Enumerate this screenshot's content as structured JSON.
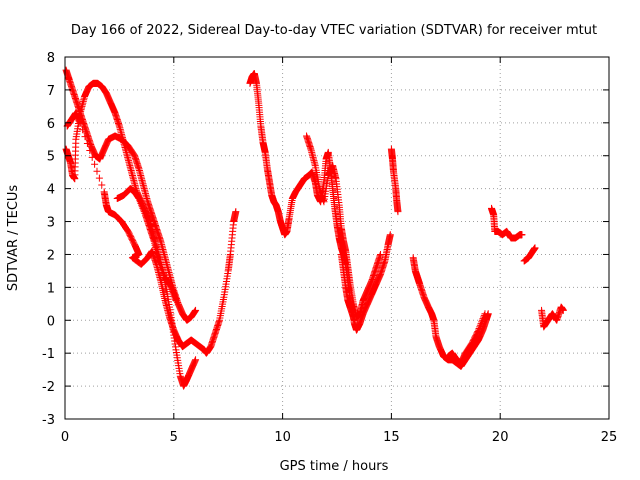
{
  "chart_data": {
    "type": "scatter",
    "title": "Day 166 of 2022, Sidereal Day-to-day VTEC variation (SDTVAR) for receiver mtut",
    "xlabel": "GPS time / hours",
    "ylabel": "SDTVAR / TECUs",
    "xlim": [
      0,
      25
    ],
    "ylim": [
      -3,
      8
    ],
    "xticks": [
      "0",
      "5",
      "10",
      "15",
      "20",
      "25"
    ],
    "yticks": [
      "-3",
      "-2",
      "-1",
      "0",
      "1",
      "2",
      "3",
      "4",
      "5",
      "6",
      "7",
      "8"
    ],
    "grid": true,
    "marker": "+",
    "color": "#ff0000",
    "series": [
      {
        "name": "trace-1",
        "points": [
          [
            0.05,
            7.6
          ],
          [
            0.2,
            7.3
          ],
          [
            0.4,
            6.9
          ],
          [
            0.6,
            6.5
          ],
          [
            0.8,
            6.1
          ],
          [
            1.0,
            5.7
          ],
          [
            1.2,
            5.3
          ],
          [
            1.4,
            5.0
          ],
          [
            1.6,
            4.9
          ],
          [
            1.8,
            5.2
          ],
          [
            2.0,
            5.5
          ],
          [
            2.3,
            5.6
          ],
          [
            2.6,
            5.5
          ],
          [
            2.9,
            5.3
          ],
          [
            3.2,
            5.0
          ],
          [
            3.4,
            4.6
          ],
          [
            3.6,
            4.1
          ],
          [
            3.8,
            3.6
          ],
          [
            4.0,
            3.2
          ],
          [
            4.2,
            2.8
          ],
          [
            4.4,
            2.4
          ],
          [
            4.6,
            1.9
          ],
          [
            4.8,
            1.4
          ],
          [
            5.0,
            0.9
          ],
          [
            5.2,
            0.5
          ],
          [
            5.4,
            0.2
          ],
          [
            5.6,
            0.0
          ],
          [
            5.8,
            0.1
          ],
          [
            6.0,
            0.3
          ]
        ]
      },
      {
        "name": "trace-2",
        "points": [
          [
            0.05,
            5.2
          ],
          [
            0.15,
            5.0
          ],
          [
            0.25,
            4.8
          ],
          [
            0.35,
            4.4
          ],
          [
            0.45,
            4.3
          ],
          [
            0.5,
            5.5
          ],
          [
            0.7,
            6.3
          ],
          [
            0.9,
            6.8
          ],
          [
            1.1,
            7.1
          ],
          [
            1.3,
            7.2
          ],
          [
            1.5,
            7.2
          ],
          [
            1.7,
            7.1
          ],
          [
            1.9,
            6.9
          ],
          [
            2.1,
            6.6
          ],
          [
            2.3,
            6.3
          ],
          [
            2.5,
            5.9
          ],
          [
            2.7,
            5.4
          ],
          [
            2.9,
            4.9
          ],
          [
            3.1,
            4.4
          ],
          [
            3.3,
            3.9
          ],
          [
            3.5,
            3.6
          ],
          [
            3.7,
            3.3
          ],
          [
            3.9,
            3.0
          ],
          [
            4.1,
            2.5
          ],
          [
            4.3,
            2.0
          ],
          [
            4.5,
            1.5
          ],
          [
            4.7,
            0.8
          ],
          [
            4.9,
            0.0
          ],
          [
            5.1,
            -0.9
          ],
          [
            5.3,
            -1.7
          ],
          [
            5.45,
            -2.0
          ],
          [
            5.6,
            -1.8
          ],
          [
            5.8,
            -1.5
          ],
          [
            6.0,
            -1.2
          ]
        ]
      },
      {
        "name": "trace-3",
        "points": [
          [
            0.1,
            5.9
          ],
          [
            0.3,
            6.1
          ],
          [
            0.5,
            6.3
          ],
          [
            0.7,
            6.0
          ],
          [
            1.8,
            3.9
          ],
          [
            1.9,
            3.5
          ],
          [
            2.0,
            3.3
          ],
          [
            2.3,
            3.2
          ],
          [
            2.6,
            3.0
          ],
          [
            2.9,
            2.7
          ],
          [
            3.2,
            2.3
          ],
          [
            3.4,
            2.0
          ],
          [
            3.1,
            1.9
          ],
          [
            3.5,
            1.7
          ],
          [
            3.8,
            1.9
          ],
          [
            4.0,
            2.1
          ],
          [
            4.2,
            1.7
          ],
          [
            4.4,
            1.2
          ],
          [
            4.6,
            0.6
          ],
          [
            4.8,
            0.1
          ],
          [
            5.0,
            -0.3
          ],
          [
            5.2,
            -0.6
          ],
          [
            5.4,
            -0.8
          ],
          [
            5.6,
            -0.7
          ],
          [
            5.8,
            -0.6
          ],
          [
            6.0,
            -0.7
          ],
          [
            6.2,
            -0.8
          ],
          [
            6.4,
            -0.9
          ],
          [
            6.5,
            -1.0
          ],
          [
            6.7,
            -0.8
          ],
          [
            6.9,
            -0.4
          ],
          [
            7.1,
            0.0
          ],
          [
            7.3,
            0.7
          ],
          [
            7.5,
            1.5
          ],
          [
            7.6,
            2.0
          ],
          [
            7.75,
            3.0
          ],
          [
            7.85,
            3.3
          ]
        ]
      },
      {
        "name": "trace-4",
        "points": [
          [
            2.4,
            3.7
          ],
          [
            2.7,
            3.8
          ],
          [
            3.0,
            4.0
          ],
          [
            3.2,
            3.9
          ],
          [
            3.4,
            3.7
          ],
          [
            3.7,
            3.2
          ],
          [
            3.9,
            2.8
          ],
          [
            4.1,
            2.4
          ],
          [
            4.3,
            1.8
          ],
          [
            4.6,
            1.3
          ],
          [
            4.9,
            1.0
          ],
          [
            5.1,
            0.6
          ]
        ]
      },
      {
        "name": "trace-5",
        "points": [
          [
            8.5,
            7.2
          ],
          [
            8.6,
            7.4
          ],
          [
            8.7,
            7.5
          ],
          [
            8.8,
            7.2
          ],
          [
            8.9,
            6.6
          ],
          [
            9.0,
            5.9
          ],
          [
            9.1,
            5.4
          ],
          [
            9.2,
            5.1
          ],
          [
            9.3,
            4.6
          ],
          [
            9.4,
            4.2
          ],
          [
            9.5,
            3.8
          ],
          [
            9.6,
            3.6
          ],
          [
            9.7,
            3.5
          ],
          [
            9.8,
            3.3
          ],
          [
            9.9,
            3.0
          ],
          [
            10.0,
            2.8
          ],
          [
            10.1,
            2.6
          ],
          [
            10.2,
            2.7
          ],
          [
            10.3,
            3.1
          ],
          [
            10.45,
            3.7
          ],
          [
            10.6,
            3.9
          ],
          [
            10.8,
            4.1
          ],
          [
            11.0,
            4.3
          ],
          [
            11.2,
            4.4
          ],
          [
            11.35,
            4.5
          ],
          [
            11.5,
            4.2
          ],
          [
            11.6,
            3.8
          ],
          [
            11.75,
            3.6
          ],
          [
            11.9,
            4.2
          ],
          [
            12.0,
            4.9
          ],
          [
            12.1,
            5.1
          ],
          [
            12.2,
            4.6
          ],
          [
            12.3,
            4.0
          ],
          [
            12.4,
            3.4
          ],
          [
            12.5,
            2.9
          ],
          [
            12.6,
            2.5
          ],
          [
            12.7,
            2.2
          ],
          [
            12.8,
            2.0
          ],
          [
            12.9,
            1.7
          ],
          [
            13.0,
            1.2
          ],
          [
            13.1,
            0.7
          ],
          [
            13.2,
            0.3
          ],
          [
            13.3,
            -0.1
          ],
          [
            13.4,
            -0.3
          ],
          [
            13.55,
            -0.1
          ],
          [
            13.7,
            0.2
          ],
          [
            13.9,
            0.5
          ],
          [
            14.1,
            0.8
          ],
          [
            14.3,
            1.1
          ],
          [
            14.5,
            1.4
          ],
          [
            14.7,
            1.8
          ],
          [
            14.85,
            2.3
          ],
          [
            14.95,
            2.6
          ]
        ]
      },
      {
        "name": "trace-6",
        "points": [
          [
            11.1,
            5.6
          ],
          [
            11.3,
            5.2
          ],
          [
            11.5,
            4.7
          ],
          [
            11.7,
            4.0
          ],
          [
            11.9,
            3.6
          ],
          [
            12.1,
            4.4
          ],
          [
            12.3,
            4.7
          ],
          [
            12.45,
            4.3
          ],
          [
            12.6,
            3.5
          ],
          [
            12.7,
            2.8
          ],
          [
            12.8,
            2.4
          ],
          [
            12.9,
            2.1
          ],
          [
            13.0,
            1.6
          ],
          [
            13.1,
            1.1
          ],
          [
            13.25,
            0.5
          ],
          [
            13.4,
            0.1
          ],
          [
            13.55,
            0.2
          ],
          [
            13.7,
            0.6
          ],
          [
            13.9,
            0.9
          ],
          [
            14.1,
            1.2
          ],
          [
            14.3,
            1.6
          ],
          [
            14.5,
            2.0
          ]
        ]
      },
      {
        "name": "trace-7",
        "points": [
          [
            12.7,
            2.0
          ],
          [
            12.8,
            1.5
          ],
          [
            12.9,
            1.0
          ],
          [
            13.0,
            0.6
          ],
          [
            13.15,
            0.3
          ],
          [
            13.3,
            0.0
          ]
        ]
      },
      {
        "name": "trace-8",
        "points": [
          [
            15.0,
            5.2
          ],
          [
            15.05,
            4.9
          ],
          [
            15.1,
            4.5
          ],
          [
            15.2,
            4.0
          ],
          [
            15.25,
            3.6
          ],
          [
            15.3,
            3.3
          ]
        ]
      },
      {
        "name": "trace-9",
        "points": [
          [
            16.0,
            1.9
          ],
          [
            16.1,
            1.5
          ],
          [
            16.2,
            1.3
          ],
          [
            16.3,
            1.1
          ],
          [
            16.5,
            0.7
          ],
          [
            16.7,
            0.4
          ],
          [
            16.85,
            0.2
          ],
          [
            16.95,
            0.0
          ],
          [
            17.05,
            -0.5
          ],
          [
            17.2,
            -0.8
          ],
          [
            17.4,
            -1.1
          ],
          [
            17.6,
            -1.2
          ],
          [
            17.8,
            -1.2
          ],
          [
            18.0,
            -1.3
          ],
          [
            18.2,
            -1.4
          ],
          [
            18.4,
            -1.2
          ],
          [
            18.6,
            -1.0
          ],
          [
            18.8,
            -0.8
          ],
          [
            19.0,
            -0.6
          ],
          [
            19.2,
            -0.3
          ],
          [
            19.35,
            0.0
          ],
          [
            19.45,
            0.2
          ]
        ]
      },
      {
        "name": "trace-10",
        "points": [
          [
            17.6,
            -1.1
          ],
          [
            17.8,
            -1.0
          ],
          [
            18.0,
            -1.2
          ],
          [
            18.2,
            -1.3
          ],
          [
            18.4,
            -1.0
          ],
          [
            18.7,
            -0.7
          ],
          [
            19.0,
            -0.3
          ],
          [
            19.3,
            0.2
          ]
        ]
      },
      {
        "name": "trace-11",
        "points": [
          [
            19.6,
            3.4
          ],
          [
            19.7,
            3.2
          ],
          [
            19.75,
            2.7
          ],
          [
            19.9,
            2.7
          ],
          [
            20.1,
            2.6
          ],
          [
            20.3,
            2.7
          ],
          [
            20.5,
            2.5
          ],
          [
            20.7,
            2.5
          ],
          [
            20.9,
            2.6
          ],
          [
            21.0,
            2.6
          ]
        ]
      },
      {
        "name": "trace-12",
        "points": [
          [
            21.1,
            1.8
          ],
          [
            21.3,
            1.9
          ],
          [
            21.5,
            2.1
          ],
          [
            21.6,
            2.2
          ]
        ]
      },
      {
        "name": "trace-13",
        "points": [
          [
            21.9,
            0.3
          ],
          [
            22.0,
            -0.2
          ],
          [
            22.2,
            0.0
          ],
          [
            22.4,
            0.2
          ],
          [
            22.6,
            0.0
          ],
          [
            22.8,
            0.4
          ],
          [
            22.9,
            0.3
          ]
        ]
      }
    ]
  }
}
